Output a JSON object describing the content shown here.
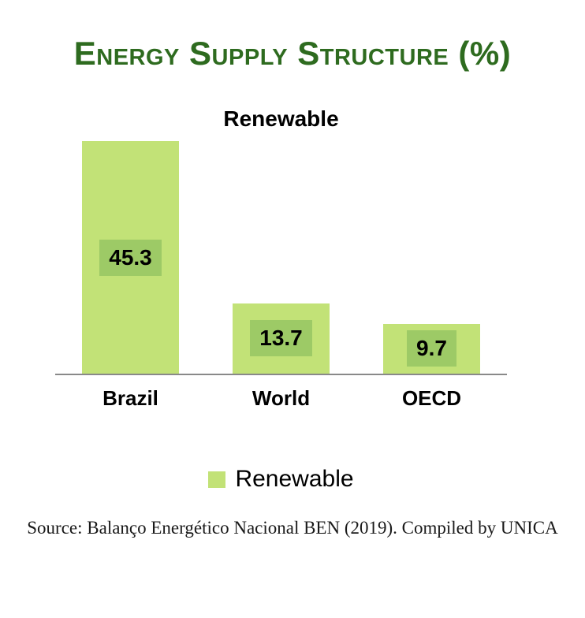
{
  "title": "Energy Supply Structure (%)",
  "series_label": "Renewable",
  "legend": {
    "label": "Renewable"
  },
  "source": "Source: Balanço Energético Nacional BEN (2019). Compiled by UNICA",
  "colors": {
    "title": "#2E6B1F",
    "bar": "#C2E277",
    "data_label_bg": "#9DCA66",
    "axis": "#898989"
  },
  "chart_data": {
    "type": "bar",
    "title": "Energy Supply Structure (%)",
    "series_name": "Renewable",
    "categories": [
      "Brazil",
      "World",
      "OECD"
    ],
    "values": [
      45.3,
      13.7,
      9.7
    ],
    "value_labels": [
      "45.3",
      "13.7",
      "9.7"
    ],
    "ylim": [
      0,
      45.5
    ],
    "grid": false,
    "y_axis_visible": false,
    "legend_position": "bottom"
  }
}
